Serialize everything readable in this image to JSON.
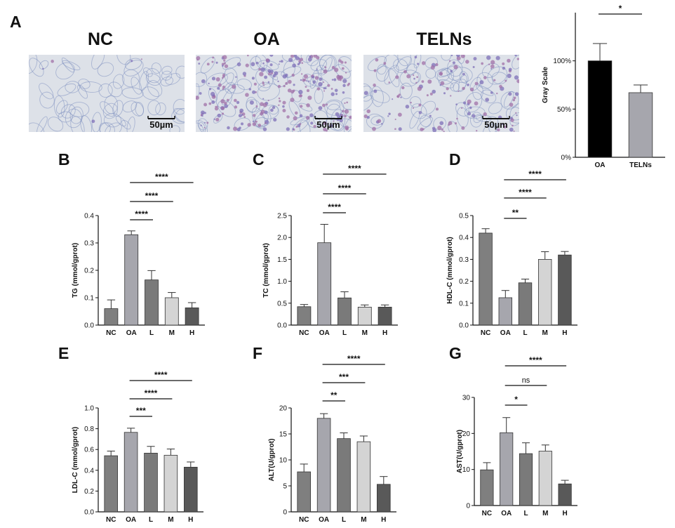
{
  "colors": {
    "nc": "#7f7f7f",
    "oa": "#a6a6ad",
    "low": "#7a7a7a",
    "mid": "#d4d4d4",
    "high": "#595959",
    "black": "#000000",
    "cell_bg": "#dde1e8",
    "stain": "#a070a8",
    "cell_edge": "#7e8fc0"
  },
  "panel_a": {
    "letter": "A",
    "images": [
      {
        "title": "NC",
        "scale": "50µm",
        "stain_density": 0.02
      },
      {
        "title": "OA",
        "scale": "50µm",
        "stain_density": 1.0
      },
      {
        "title": "TELNs",
        "scale": "50µm",
        "stain_density": 0.55
      }
    ]
  },
  "chart_data": [
    {
      "id": "A-right",
      "type": "bar",
      "categories": [
        "OA",
        "TELNs"
      ],
      "values": [
        100,
        67
      ],
      "errors": [
        18,
        8
      ],
      "bar_colors": [
        "#000000",
        "#a6a6ad"
      ],
      "ylabel": "Gray Scale",
      "ylim": [
        0,
        150
      ],
      "yticks": [
        0,
        50,
        100
      ],
      "ytick_labels": [
        "0%",
        "50%",
        "100%"
      ],
      "significance": [
        {
          "from": 0,
          "to": 1,
          "label": "*"
        }
      ]
    },
    {
      "id": "B",
      "letter": "B",
      "type": "bar",
      "categories": [
        "NC",
        "OA",
        "L",
        "M",
        "H"
      ],
      "values": [
        0.06,
        0.33,
        0.165,
        0.1,
        0.063
      ],
      "errors": [
        0.032,
        0.014,
        0.034,
        0.019,
        0.019
      ],
      "ylabel": "TG (mmol/gprot)",
      "ylim": [
        0,
        0.4
      ],
      "yticks": [
        0.0,
        0.1,
        0.2,
        0.3,
        0.4
      ],
      "ytick_labels": [
        "0.0",
        "0.1",
        "0.2",
        "0.3",
        "0.4"
      ],
      "significance": [
        {
          "from": 1,
          "to": 2,
          "label": "****"
        },
        {
          "from": 1,
          "to": 3,
          "label": "****"
        },
        {
          "from": 1,
          "to": 4,
          "label": "****"
        }
      ]
    },
    {
      "id": "C",
      "letter": "C",
      "type": "bar",
      "categories": [
        "NC",
        "OA",
        "L",
        "M",
        "H"
      ],
      "values": [
        0.42,
        1.88,
        0.62,
        0.41,
        0.41
      ],
      "errors": [
        0.05,
        0.42,
        0.14,
        0.05,
        0.05
      ],
      "ylabel": "TC (mmol/gprot)",
      "ylim": [
        0,
        2.5
      ],
      "yticks": [
        0.0,
        0.5,
        1.0,
        1.5,
        2.0,
        2.5
      ],
      "ytick_labels": [
        "0.0",
        "0.5",
        "1.0",
        "1.5",
        "2.0",
        "2.5"
      ],
      "significance": [
        {
          "from": 1,
          "to": 2,
          "label": "****"
        },
        {
          "from": 1,
          "to": 3,
          "label": "****"
        },
        {
          "from": 1,
          "to": 4,
          "label": "****"
        }
      ]
    },
    {
      "id": "D",
      "letter": "D",
      "type": "bar",
      "categories": [
        "NC",
        "OA",
        "L",
        "M",
        "H"
      ],
      "values": [
        0.42,
        0.125,
        0.193,
        0.3,
        0.32
      ],
      "errors": [
        0.02,
        0.033,
        0.017,
        0.035,
        0.016
      ],
      "ylabel": "HDL-C (mmol/gprot)",
      "ylim": [
        0,
        0.5
      ],
      "yticks": [
        0.0,
        0.1,
        0.2,
        0.3,
        0.4,
        0.5
      ],
      "ytick_labels": [
        "0.0",
        "0.1",
        "0.2",
        "0.3",
        "0.4",
        "0.5"
      ],
      "significance": [
        {
          "from": 1,
          "to": 2,
          "label": "**"
        },
        {
          "from": 1,
          "to": 3,
          "label": "****"
        },
        {
          "from": 1,
          "to": 4,
          "label": "****"
        }
      ]
    },
    {
      "id": "E",
      "letter": "E",
      "type": "bar",
      "categories": [
        "NC",
        "OA",
        "L",
        "M",
        "H"
      ],
      "values": [
        0.54,
        0.765,
        0.565,
        0.545,
        0.43
      ],
      "errors": [
        0.045,
        0.04,
        0.065,
        0.06,
        0.05
      ],
      "ylabel": "LDL-C (mmol/gprot)",
      "ylim": [
        0,
        1.0
      ],
      "yticks": [
        0.0,
        0.2,
        0.4,
        0.6,
        0.8,
        1.0
      ],
      "ytick_labels": [
        "0.0",
        "0.2",
        "0.4",
        "0.6",
        "0.8",
        "1.0"
      ],
      "significance": [
        {
          "from": 1,
          "to": 2,
          "label": "***"
        },
        {
          "from": 1,
          "to": 3,
          "label": "****"
        },
        {
          "from": 1,
          "to": 4,
          "label": "****"
        }
      ]
    },
    {
      "id": "F",
      "letter": "F",
      "type": "bar",
      "categories": [
        "NC",
        "OA",
        "L",
        "M",
        "H"
      ],
      "values": [
        7.7,
        18.0,
        14.1,
        13.5,
        5.3
      ],
      "errors": [
        1.5,
        0.9,
        1.1,
        1.1,
        1.5
      ],
      "ylabel": "ALT(U/gprot)",
      "ylim": [
        0,
        20
      ],
      "yticks": [
        0,
        5,
        10,
        15,
        20
      ],
      "ytick_labels": [
        "0",
        "5",
        "10",
        "15",
        "20"
      ],
      "significance": [
        {
          "from": 1,
          "to": 2,
          "label": "**"
        },
        {
          "from": 1,
          "to": 3,
          "label": "***"
        },
        {
          "from": 1,
          "to": 4,
          "label": "****"
        }
      ]
    },
    {
      "id": "G",
      "letter": "G",
      "type": "bar",
      "categories": [
        "NC",
        "OA",
        "L",
        "M",
        "H"
      ],
      "values": [
        9.9,
        20.2,
        14.4,
        15.1,
        6.0
      ],
      "errors": [
        2.0,
        4.2,
        3.0,
        1.7,
        1.0
      ],
      "ylabel": "AST(U/gprot)",
      "ylim": [
        0,
        30
      ],
      "yticks": [
        0,
        10,
        20,
        30
      ],
      "ytick_labels": [
        "0",
        "10",
        "20",
        "30"
      ],
      "significance": [
        {
          "from": 1,
          "to": 2,
          "label": "*"
        },
        {
          "from": 1,
          "to": 3,
          "label": "ns"
        },
        {
          "from": 1,
          "to": 4,
          "label": "****"
        }
      ]
    }
  ]
}
